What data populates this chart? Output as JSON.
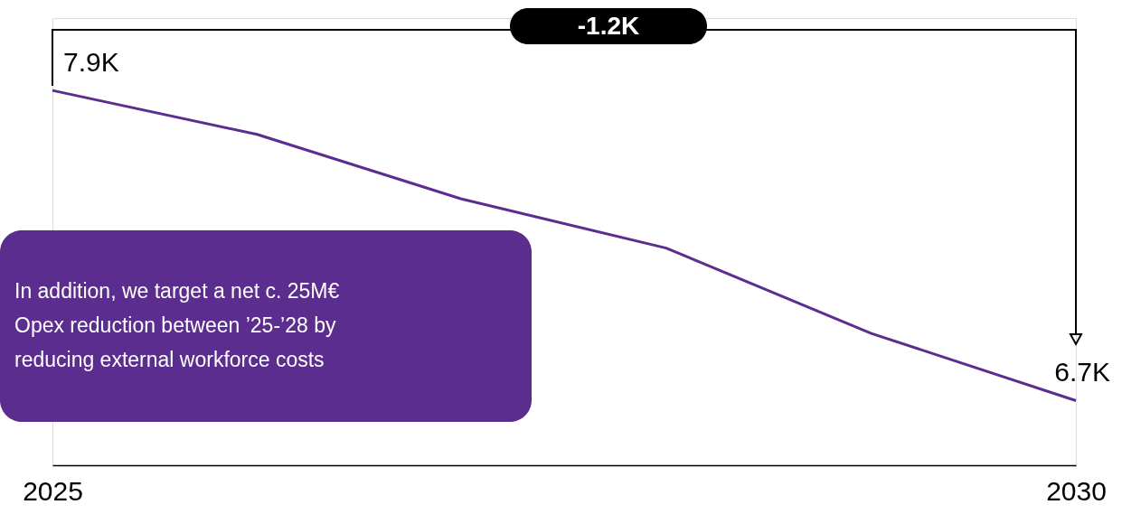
{
  "chart_data": {
    "type": "line",
    "x": [
      "2025",
      "2026",
      "2027",
      "2028",
      "2029",
      "2030"
    ],
    "series": [
      {
        "color": "#5b2d91",
        "values": [
          7.9,
          7.73,
          7.48,
          7.29,
          6.96,
          6.7
        ],
        "value_labels": [
          "7.9K",
          null,
          null,
          null,
          null,
          "6.7K"
        ]
      }
    ],
    "xlim": [
      "2025",
      "2030"
    ],
    "xticks": [
      "2025",
      "2030"
    ],
    "ylim": [
      6.45,
      8.18
    ],
    "tick_labels": "x",
    "grid": false,
    "marker": "none",
    "line_style": "solid",
    "annotations": [
      "-1.2K",
      "In addition, we target a net c. 25M€\nOpex reduction between ’25-’28 by\nreducing external workforce costs"
    ]
  }
}
